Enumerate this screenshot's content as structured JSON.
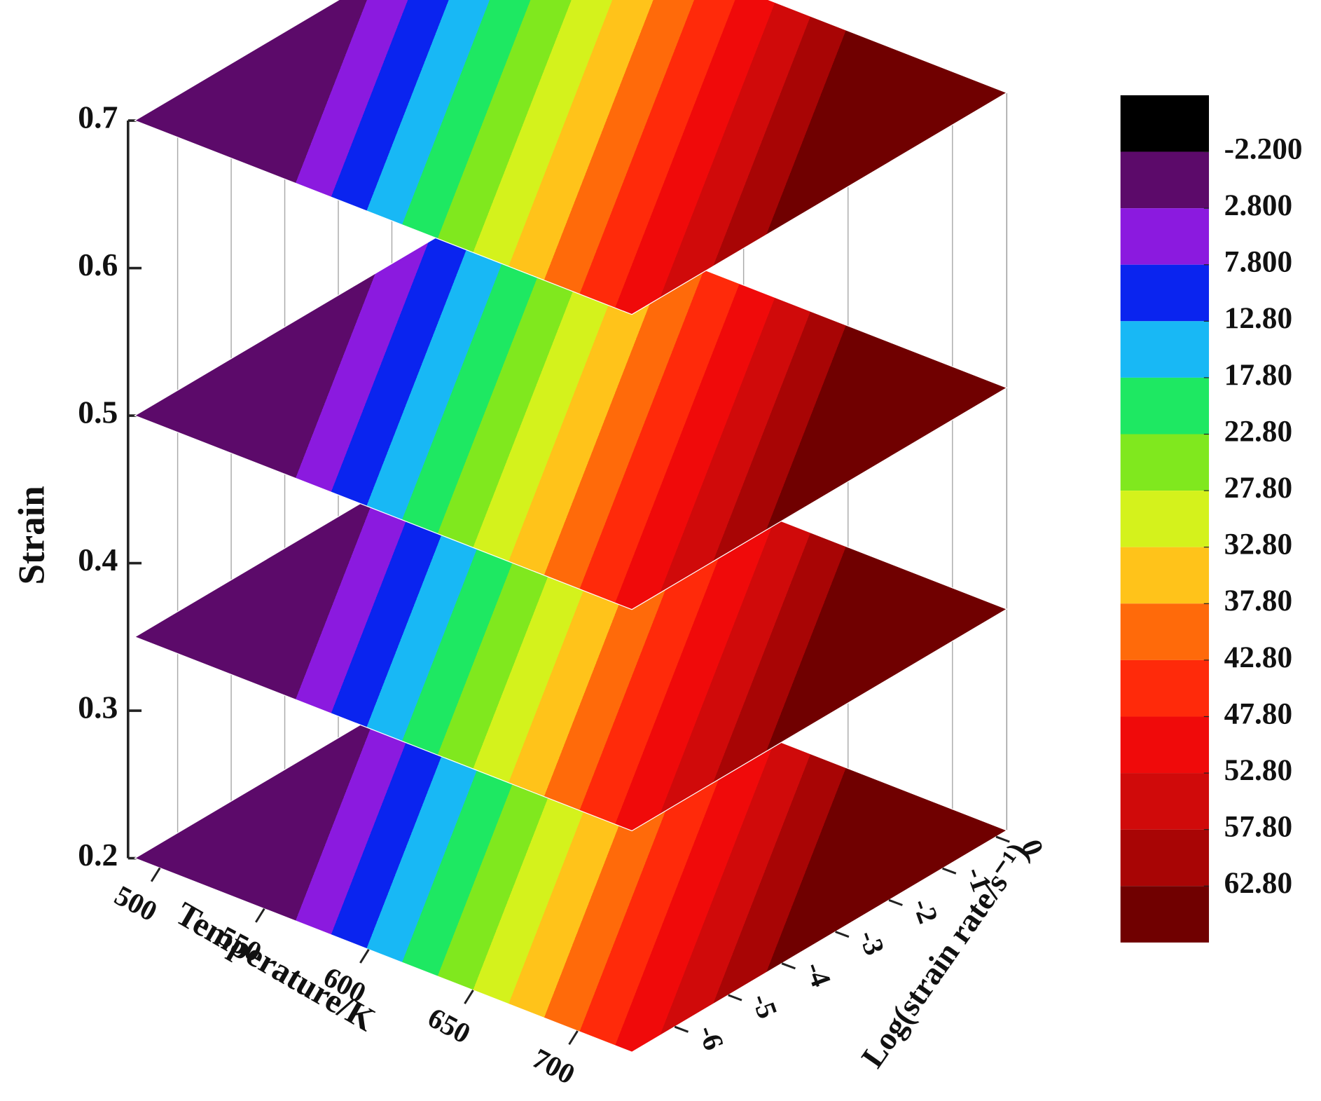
{
  "chart_data": {
    "type": "contour3d",
    "zlabel": "Strain",
    "xlabel": "Temperature/K",
    "ylabel": "Log(strain rate/s⁻¹)",
    "xlim": [
      488,
      726
    ],
    "xticks": [
      500,
      550,
      600,
      650,
      700
    ],
    "ylim": [
      -6.8,
      0.2
    ],
    "yticks": [
      -6,
      -5,
      -4,
      -3,
      -2,
      -1,
      0
    ],
    "zlim": [
      0.2,
      0.7
    ],
    "zticks": [
      0.2,
      0.3,
      0.4,
      0.5,
      0.6,
      0.7
    ],
    "slices": [
      0.2,
      0.35,
      0.5,
      0.7
    ],
    "colorbar": {
      "ticks": [
        {
          "value": -2.2,
          "label": "-2.200"
        },
        {
          "value": 2.8,
          "label": "2.800"
        },
        {
          "value": 7.8,
          "label": "7.800"
        },
        {
          "value": 12.8,
          "label": "12.80"
        },
        {
          "value": 17.8,
          "label": "17.80"
        },
        {
          "value": 22.8,
          "label": "22.80"
        },
        {
          "value": 27.8,
          "label": "27.80"
        },
        {
          "value": 32.8,
          "label": "32.80"
        },
        {
          "value": 37.8,
          "label": "37.80"
        },
        {
          "value": 42.8,
          "label": "42.80"
        },
        {
          "value": 47.8,
          "label": "47.80"
        },
        {
          "value": 52.8,
          "label": "52.80"
        },
        {
          "value": 57.8,
          "label": "57.80"
        },
        {
          "value": 62.8,
          "label": "62.80"
        }
      ],
      "colors": [
        "#000000",
        "#5c0a6a",
        "#8b1adf",
        "#0a24ef",
        "#18b8f5",
        "#1ee862",
        "#80e81e",
        "#d4f21c",
        "#ffc31a",
        "#ff6a0a",
        "#ff2a0a",
        "#f00a0a",
        "#d00a0a",
        "#a80505",
        "#700000"
      ]
    }
  }
}
